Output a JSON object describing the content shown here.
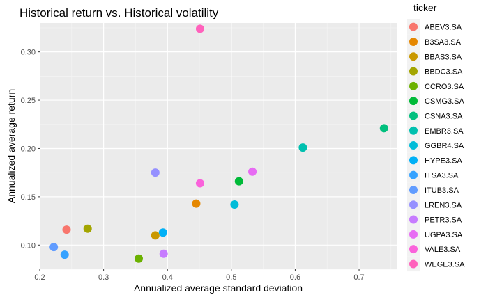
{
  "chart_data": {
    "type": "scatter",
    "title": "Historical return vs. Historical volatility",
    "xlabel": "Annualized average standard deviation",
    "ylabel": "Annualized average return",
    "xlim": [
      0.2,
      0.76
    ],
    "ylim": [
      0.075,
      0.33
    ],
    "x_ticks": [
      0.2,
      0.3,
      0.4,
      0.5,
      0.6,
      0.7
    ],
    "x_tick_labels": [
      "0.2",
      "0.3",
      "0.4",
      "0.5",
      "0.6",
      "0.7"
    ],
    "y_ticks": [
      0.1,
      0.15,
      0.2,
      0.25,
      0.3
    ],
    "y_tick_labels": [
      "0.10",
      "0.15",
      "0.20",
      "0.25",
      "0.30"
    ],
    "grid": true,
    "legend_title": "ticker",
    "legend_position": "right",
    "series": [
      {
        "name": "ABEV3.SA",
        "color": "#F8766D",
        "x": 0.242,
        "y": 0.116
      },
      {
        "name": "B3SA3.SA",
        "color": "#E58700",
        "x": 0.445,
        "y": 0.143
      },
      {
        "name": "BBAS3.SA",
        "color": "#C99800",
        "x": 0.381,
        "y": 0.11
      },
      {
        "name": "BBDC3.SA",
        "color": "#A3A500",
        "x": 0.275,
        "y": 0.117
      },
      {
        "name": "CCRO3.SA",
        "color": "#6BB100",
        "x": 0.355,
        "y": 0.086
      },
      {
        "name": "CSMG3.SA",
        "color": "#00BA38",
        "x": 0.512,
        "y": 0.166
      },
      {
        "name": "CSNA3.SA",
        "color": "#00BF7D",
        "x": 0.739,
        "y": 0.221
      },
      {
        "name": "EMBR3.SA",
        "color": "#00C0AF",
        "x": 0.612,
        "y": 0.201
      },
      {
        "name": "GGBR4.SA",
        "color": "#00BCD8",
        "x": 0.505,
        "y": 0.142
      },
      {
        "name": "HYPE3.SA",
        "color": "#00B0F6",
        "x": 0.393,
        "y": 0.113
      },
      {
        "name": "ITSA3.SA",
        "color": "#35A2FF",
        "x": 0.239,
        "y": 0.09
      },
      {
        "name": "ITUB3.SA",
        "color": "#619CFF",
        "x": 0.222,
        "y": 0.098
      },
      {
        "name": "LREN3.SA",
        "color": "#9590FF",
        "x": 0.381,
        "y": 0.175
      },
      {
        "name": "PETR3.SA",
        "color": "#C77CFF",
        "x": 0.394,
        "y": 0.091
      },
      {
        "name": "UGPA3.SA",
        "color": "#E76BF3",
        "x": 0.533,
        "y": 0.176
      },
      {
        "name": "VALE3.SA",
        "color": "#FA62DB",
        "x": 0.451,
        "y": 0.164
      },
      {
        "name": "WEGE3.SA",
        "color": "#FF62BC",
        "x": 0.451,
        "y": 0.324
      }
    ]
  }
}
